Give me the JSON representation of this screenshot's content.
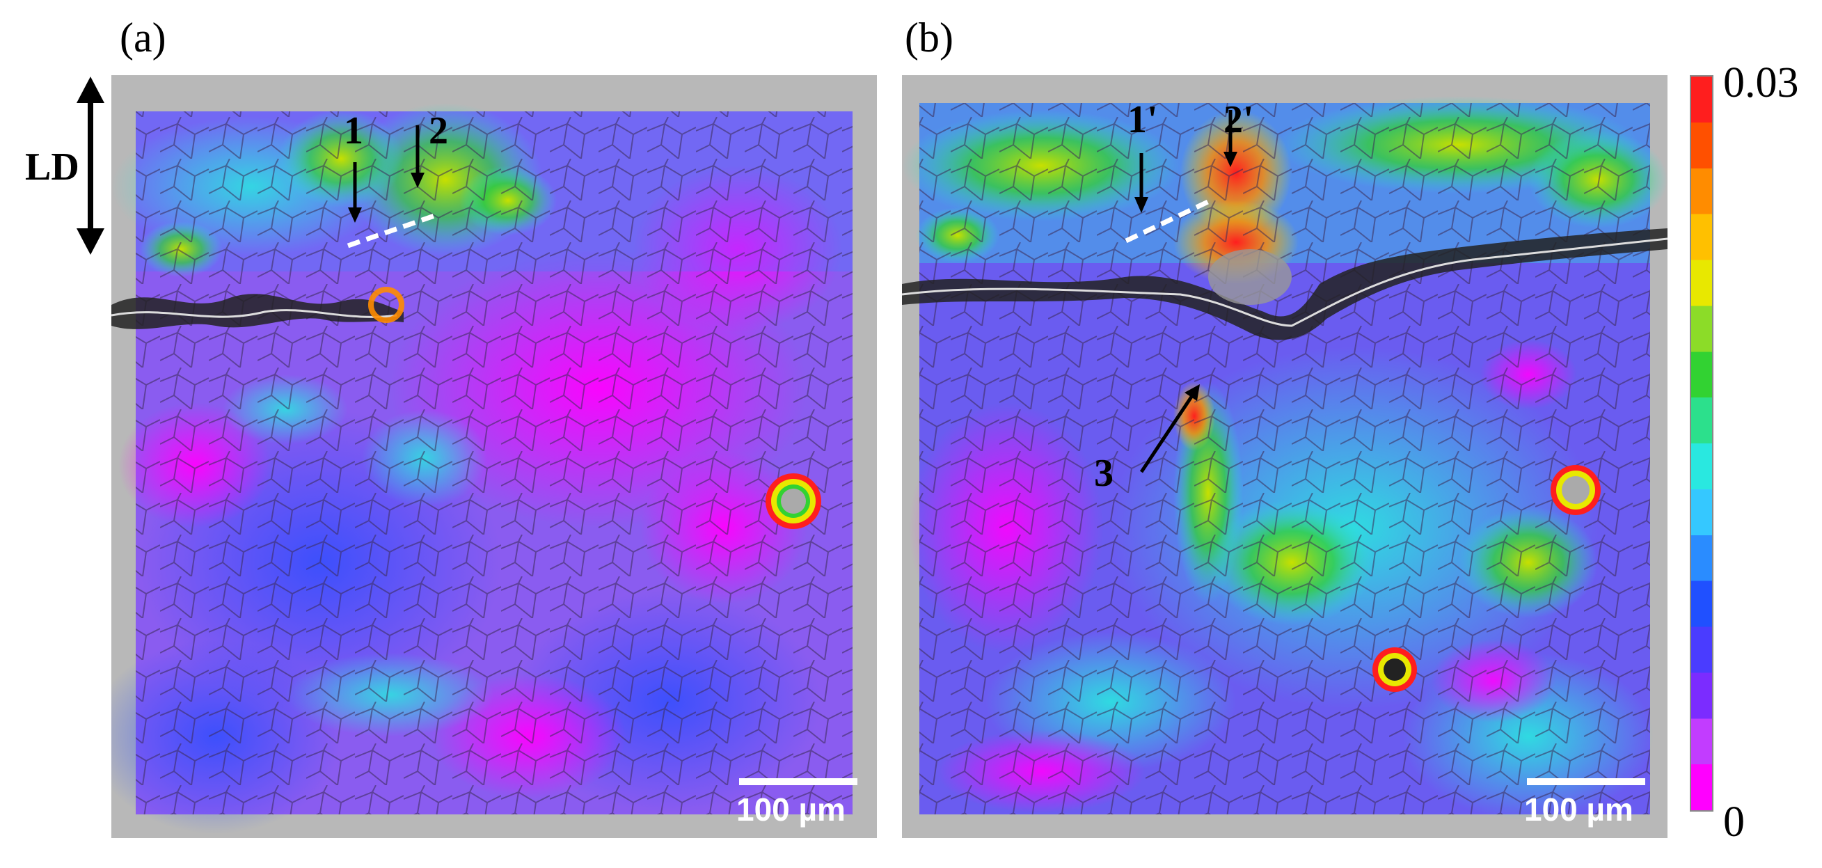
{
  "panels": [
    {
      "label": "(a)",
      "scale_text": "100 µm",
      "annotations": [
        "1",
        "2"
      ]
    },
    {
      "label": "(b)",
      "scale_text": "100 µm",
      "annotations": [
        "1'",
        "2'",
        "3"
      ]
    }
  ],
  "direction_label": "LD",
  "colorbar": {
    "max_label": "0.03",
    "min_label": "0",
    "colors": [
      "#ff00ff",
      "#c23cff",
      "#7b2cff",
      "#4a3cff",
      "#2050ff",
      "#2a8cff",
      "#35c8ff",
      "#29e8e0",
      "#2ce08c",
      "#32d232",
      "#8cdc28",
      "#e8e800",
      "#ffc000",
      "#ff8c00",
      "#ff5000",
      "#ff1e1e"
    ]
  }
}
